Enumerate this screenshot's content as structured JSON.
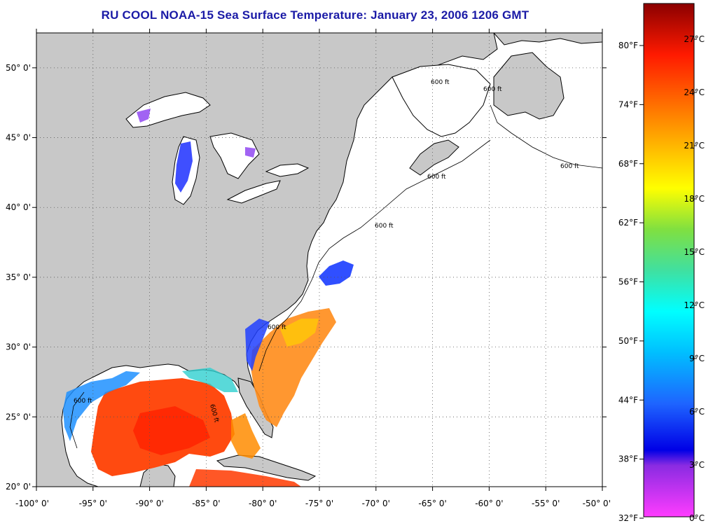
{
  "title": "RU COOL  NOAA-15  Sea Surface Temperature:  January 23, 2006 1206 GMT",
  "map": {
    "lat_labels": [
      {
        "value": 50,
        "text": "50° 0'"
      },
      {
        "value": 45,
        "text": "45° 0'"
      },
      {
        "value": 40,
        "text": "40° 0'"
      },
      {
        "value": 35,
        "text": "35° 0'"
      },
      {
        "value": 30,
        "text": "30° 0'"
      },
      {
        "value": 25,
        "text": "25° 0'"
      },
      {
        "value": 20,
        "text": "20° 0'"
      }
    ],
    "lon_labels": [
      {
        "value": -100,
        "text": "-100° 0'"
      },
      {
        "value": -95,
        "text": "-95° 0'"
      },
      {
        "value": -90,
        "text": "-90° 0'"
      },
      {
        "value": -85,
        "text": "-85° 0'"
      },
      {
        "value": -80,
        "text": "-80° 0'"
      },
      {
        "value": -75,
        "text": "-75° 0'"
      },
      {
        "value": -70,
        "text": "-70° 0'"
      },
      {
        "value": -65,
        "text": "-65° 0'"
      },
      {
        "value": -60,
        "text": "-60° 0'"
      },
      {
        "value": -55,
        "text": "-55° 0'"
      },
      {
        "value": -50,
        "text": "-50° 0'"
      }
    ],
    "lat_range": [
      20,
      52.5
    ],
    "lon_range": [
      -100,
      -50
    ],
    "contour_labels": [
      "600 ft",
      "600 ft",
      "600 ft",
      "600 ft",
      "600 ft",
      "600 ft",
      "600 ft",
      "600 ft"
    ],
    "colors": {
      "land": "#c8c8c8",
      "no_data": "#ffffff"
    }
  },
  "colorbar": {
    "fahrenheit": [
      "80°F",
      "74°F",
      "68°F",
      "62°F",
      "56°F",
      "50°F",
      "44°F",
      "38°F",
      "32°F"
    ],
    "celsius": [
      "27°C",
      "24°C",
      "21°C",
      "18°C",
      "15°C",
      "12°C",
      "9°C",
      "6°C",
      "3°C",
      "0°C"
    ]
  }
}
